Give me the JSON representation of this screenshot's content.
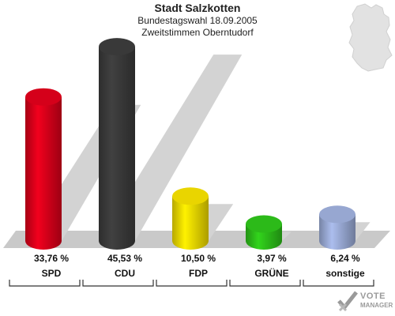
{
  "header": {
    "title": "Stadt Salzkotten",
    "subtitle1": "Bundestagswahl 18.09.2005",
    "subtitle2": "Zweitstimmen Oberntudorf"
  },
  "logo": {
    "line1": "VOTE",
    "line2": "MANAGER"
  },
  "chart_data": {
    "type": "bar",
    "categories": [
      "SPD",
      "CDU",
      "FDP",
      "GRÜNE",
      "sonstige"
    ],
    "values": [
      33.76,
      45.53,
      10.5,
      3.97,
      6.24
    ],
    "value_labels": [
      "33,76 %",
      "45,53 %",
      "10,50 %",
      "3,97 %",
      "6,24 %"
    ],
    "colors": [
      "#e0001b",
      "#3c3c3c",
      "#f5e000",
      "#2ec41a",
      "#9fb0dc"
    ],
    "title": "Stadt Salzkotten",
    "xlabel": "",
    "ylabel": "",
    "ylim": [
      0,
      50
    ],
    "grid": false
  }
}
